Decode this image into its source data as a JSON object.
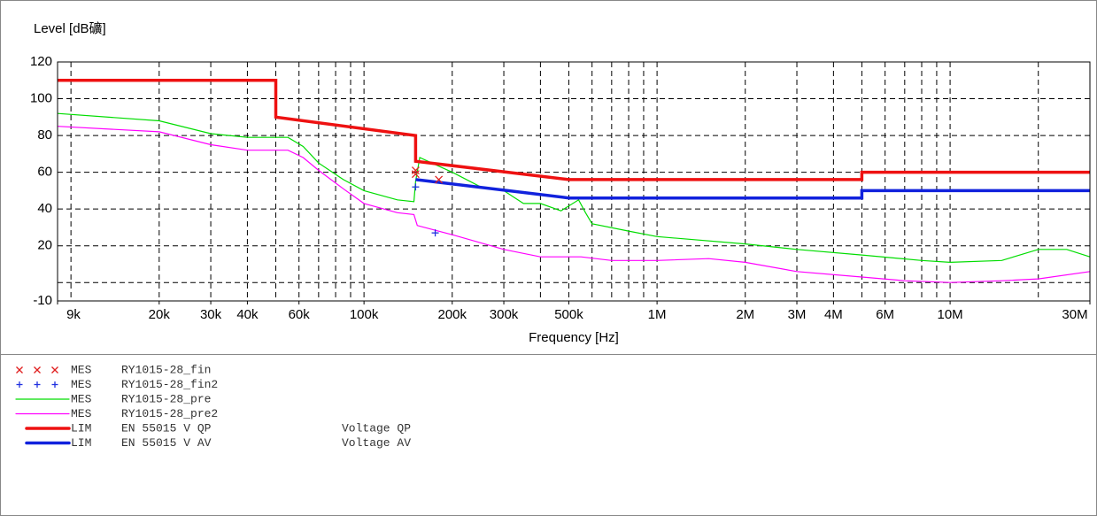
{
  "chart_data": {
    "type": "line",
    "ylabel": "Level [dB礦]",
    "xlabel": "Frequency [Hz]",
    "xscale": "log",
    "xlim": [
      9000,
      30000000
    ],
    "ylim": [
      -10,
      120
    ],
    "yticks": [
      -10,
      20,
      40,
      60,
      80,
      100,
      120
    ],
    "ygrid": [
      0,
      20,
      40,
      60,
      80,
      100,
      120
    ],
    "xticks": [
      {
        "value": 9000,
        "label": "9k"
      },
      {
        "value": 20000,
        "label": "20k"
      },
      {
        "value": 30000,
        "label": "30k"
      },
      {
        "value": 40000,
        "label": "40k"
      },
      {
        "value": 60000,
        "label": "60k"
      },
      {
        "value": 100000,
        "label": "100k"
      },
      {
        "value": 200000,
        "label": "200k"
      },
      {
        "value": 300000,
        "label": "300k"
      },
      {
        "value": 500000,
        "label": "500k"
      },
      {
        "value": 1000000,
        "label": "1M"
      },
      {
        "value": 2000000,
        "label": "2M"
      },
      {
        "value": 3000000,
        "label": "3M"
      },
      {
        "value": 4000000,
        "label": "4M"
      },
      {
        "value": 6000000,
        "label": "6M"
      },
      {
        "value": 10000000,
        "label": "10M"
      },
      {
        "value": 30000000,
        "label": "30M"
      }
    ],
    "xgrid": [
      10000,
      20000,
      30000,
      40000,
      50000,
      60000,
      70000,
      80000,
      90000,
      100000,
      200000,
      300000,
      400000,
      500000,
      600000,
      700000,
      800000,
      900000,
      1000000,
      2000000,
      3000000,
      4000000,
      5000000,
      6000000,
      7000000,
      8000000,
      9000000,
      10000000,
      20000000
    ],
    "grid": true,
    "series": [
      {
        "prefix": "MES",
        "name": "RY1015-28_fin",
        "color": "#e02020",
        "style": "markers",
        "marker": "x",
        "x": [
          150000,
          150000,
          180000
        ],
        "values": [
          61,
          59,
          56
        ]
      },
      {
        "prefix": "MES",
        "name": "RY1015-28_fin2",
        "color": "#2030e0",
        "style": "markers",
        "marker": "+",
        "x": [
          150000,
          175000
        ],
        "values": [
          52,
          27
        ]
      },
      {
        "prefix": "MES",
        "name": "RY1015-28_pre",
        "color": "#00dd00",
        "style": "line",
        "width": 1.2,
        "x": [
          9000,
          20000,
          30000,
          40000,
          55000,
          62000,
          70000,
          85000,
          100000,
          130000,
          148000,
          150000,
          155000,
          200000,
          250000,
          300000,
          350000,
          400000,
          470000,
          540000,
          570000,
          600000,
          800000,
          1000000,
          2000000,
          3000000,
          5000000,
          8000000,
          10000000,
          15000000,
          20000000,
          25000000,
          30000000
        ],
        "values": [
          92,
          88,
          81,
          79,
          79,
          74,
          65,
          56,
          50,
          45,
          44,
          55,
          68,
          60,
          52,
          50,
          43,
          43,
          39,
          45,
          38,
          32,
          28,
          25,
          21,
          18,
          15,
          12,
          11,
          12,
          18,
          18,
          14
        ]
      },
      {
        "prefix": "MES",
        "name": "RY1015-28_pre2",
        "color": "#ff00ff",
        "style": "line",
        "width": 1.2,
        "x": [
          9000,
          20000,
          30000,
          40000,
          55000,
          62000,
          70000,
          85000,
          100000,
          130000,
          148000,
          152000,
          200000,
          300000,
          400000,
          550000,
          700000,
          1000000,
          1500000,
          2000000,
          3000000,
          5000000,
          7000000,
          10000000,
          15000000,
          20000000,
          30000000
        ],
        "values": [
          85,
          82,
          75,
          72,
          72,
          68,
          61,
          51,
          43,
          38,
          37,
          31,
          26,
          18,
          14,
          14,
          12,
          12,
          13,
          11,
          6,
          3,
          1,
          0,
          1,
          2,
          6
        ]
      },
      {
        "prefix": "LIM",
        "name": "EN 55015 V QP",
        "description": "Voltage QP",
        "color": "#ee1111",
        "style": "line",
        "width": 3.5,
        "x": [
          9000,
          50000,
          50000,
          150000,
          150000,
          500000,
          5000000,
          5000000,
          30000000
        ],
        "values": [
          110,
          110,
          90,
          80,
          66,
          56,
          56,
          60,
          60
        ]
      },
      {
        "prefix": "LIM",
        "name": "EN 55015 V AV",
        "description": "Voltage AV",
        "color": "#1122dd",
        "style": "line",
        "width": 3.5,
        "x": [
          150000,
          500000,
          5000000,
          5000000,
          30000000
        ],
        "values": [
          56,
          46,
          46,
          50,
          50
        ]
      }
    ]
  }
}
